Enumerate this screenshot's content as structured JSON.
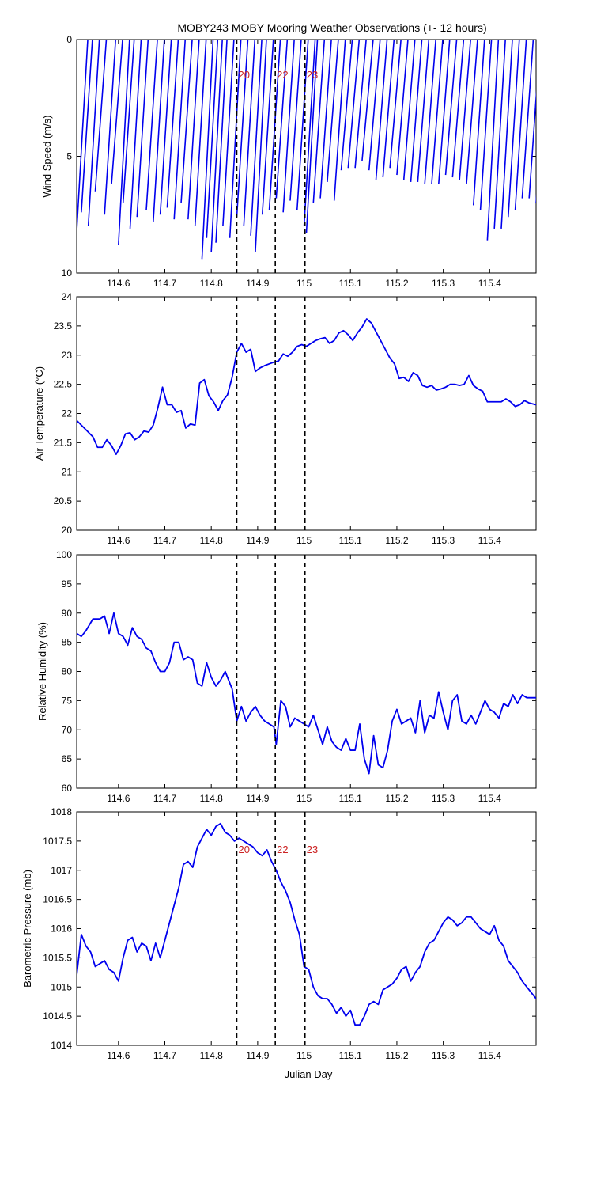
{
  "title": "MOBY243 MOBY Mooring Weather Observations (+- 12 hours)",
  "colors": {
    "line": "#0000ee",
    "axis": "#000000",
    "marker_label": "#cc2222",
    "marker_line": "#000000"
  },
  "markers": [
    {
      "x": 114.855,
      "label": "20"
    },
    {
      "x": 114.938,
      "label": "22"
    },
    {
      "x": 115.002,
      "label": "23"
    }
  ],
  "chart_data": [
    {
      "type": "line",
      "ylabel": "Wind Speed (m/s)",
      "xlabel": "",
      "xlim": [
        114.51,
        115.5
      ],
      "ylim": [
        10,
        0
      ],
      "y_reversed": true,
      "xticks": [
        114.6,
        114.7,
        114.8,
        114.9,
        115,
        115.1,
        115.2,
        115.3,
        115.4
      ],
      "xtick_labels": [
        "114.6",
        "114.7",
        "114.8",
        "114.9",
        "115",
        "115.1",
        "115.2",
        "115.3",
        "115.4"
      ],
      "yticks": [
        0,
        5,
        10
      ],
      "ytick_labels": [
        "0",
        "5",
        "10"
      ],
      "show_markers_labels": true,
      "style": "sticks",
      "series": [
        {
          "x": [
            114.51,
            114.52,
            114.535,
            114.55,
            114.57,
            114.585,
            114.6,
            114.61,
            114.625,
            114.64,
            114.66,
            114.675,
            114.69,
            114.705,
            114.72,
            114.735,
            114.75,
            114.765,
            114.78,
            114.79,
            114.8,
            114.81,
            114.825,
            114.84,
            114.855,
            114.87,
            114.885,
            114.895,
            114.91,
            114.925,
            114.94,
            114.955,
            114.97,
            114.985,
            115.0,
            115.005,
            115.02,
            115.035,
            115.05,
            115.065,
            115.08,
            115.095,
            115.11,
            115.125,
            115.14,
            115.155,
            115.17,
            115.185,
            115.2,
            115.215,
            115.23,
            115.245,
            115.26,
            115.275,
            115.29,
            115.305,
            115.32,
            115.335,
            115.35,
            115.365,
            115.38,
            115.395,
            115.41,
            115.425,
            115.44,
            115.455,
            115.47,
            115.485,
            115.5
          ],
          "values": [
            8.2,
            7.4,
            8.0,
            6.5,
            7.5,
            6.2,
            8.8,
            7.0,
            8.1,
            7.6,
            7.3,
            7.8,
            7.5,
            7.2,
            7.7,
            7.0,
            7.7,
            8.0,
            9.4,
            8.5,
            9.1,
            8.7,
            8.0,
            8.5,
            7.6,
            8.0,
            8.4,
            9.1,
            7.5,
            7.3,
            6.8,
            7.4,
            6.9,
            7.3,
            8.0,
            8.3,
            7.0,
            6.8,
            6.1,
            6.9,
            5.6,
            5.5,
            5.5,
            5.2,
            5.6,
            6.0,
            5.9,
            5.5,
            5.8,
            6.0,
            6.1,
            6.1,
            6.2,
            6.2,
            6.2,
            5.8,
            5.9,
            6.0,
            6.2,
            7.1,
            7.3,
            8.6,
            8.1,
            8.1,
            7.6,
            7.3,
            6.8,
            6.8,
            7.0
          ]
        }
      ]
    },
    {
      "type": "line",
      "ylabel": "Air Temperature (°C)",
      "xlabel": "",
      "xlim": [
        114.51,
        115.5
      ],
      "ylim": [
        20,
        24
      ],
      "xticks": [
        114.6,
        114.7,
        114.8,
        114.9,
        115,
        115.1,
        115.2,
        115.3,
        115.4
      ],
      "xtick_labels": [
        "114.6",
        "114.7",
        "114.8",
        "114.9",
        "115",
        "115.1",
        "115.2",
        "115.3",
        "115.4"
      ],
      "yticks": [
        20,
        20.5,
        21,
        21.5,
        22,
        22.5,
        23,
        23.5,
        24
      ],
      "ytick_labels": [
        "20",
        "20.5",
        "21",
        "21.5",
        "22",
        "22.5",
        "23",
        "23.5",
        "24"
      ],
      "show_markers_labels": false,
      "series": [
        {
          "x": [
            114.51,
            114.53,
            114.545,
            114.555,
            114.565,
            114.575,
            114.585,
            114.595,
            114.605,
            114.615,
            114.625,
            114.635,
            114.645,
            114.655,
            114.665,
            114.675,
            114.685,
            114.695,
            114.705,
            114.715,
            114.725,
            114.735,
            114.745,
            114.755,
            114.765,
            114.775,
            114.785,
            114.795,
            114.805,
            114.815,
            114.825,
            114.835,
            114.845,
            114.855,
            114.865,
            114.875,
            114.885,
            114.895,
            114.905,
            114.915,
            114.925,
            114.935,
            114.945,
            114.955,
            114.965,
            114.975,
            114.985,
            114.995,
            115.005,
            115.015,
            115.025,
            115.035,
            115.045,
            115.055,
            115.065,
            115.075,
            115.085,
            115.095,
            115.105,
            115.115,
            115.125,
            115.135,
            115.145,
            115.155,
            115.165,
            115.175,
            115.185,
            115.195,
            115.205,
            115.215,
            115.225,
            115.235,
            115.245,
            115.255,
            115.265,
            115.275,
            115.285,
            115.295,
            115.305,
            115.315,
            115.325,
            115.335,
            115.345,
            115.355,
            115.365,
            115.375,
            115.385,
            115.395,
            115.405,
            115.415,
            115.425,
            115.435,
            115.445,
            115.455,
            115.465,
            115.475,
            115.485,
            115.5
          ],
          "values": [
            21.88,
            21.72,
            21.6,
            21.42,
            21.42,
            21.55,
            21.45,
            21.3,
            21.45,
            21.65,
            21.67,
            21.55,
            21.6,
            21.7,
            21.68,
            21.8,
            22.1,
            22.45,
            22.15,
            22.15,
            22.02,
            22.05,
            21.75,
            21.82,
            21.8,
            22.52,
            22.58,
            22.3,
            22.2,
            22.05,
            22.22,
            22.32,
            22.62,
            23.05,
            23.2,
            23.05,
            23.1,
            22.72,
            22.78,
            22.82,
            22.85,
            22.88,
            22.9,
            23.02,
            22.98,
            23.05,
            23.15,
            23.18,
            23.15,
            23.2,
            23.25,
            23.28,
            23.3,
            23.2,
            23.25,
            23.38,
            23.42,
            23.35,
            23.25,
            23.38,
            23.48,
            23.62,
            23.55,
            23.4,
            23.25,
            23.1,
            22.95,
            22.85,
            22.6,
            22.62,
            22.55,
            22.7,
            22.65,
            22.48,
            22.45,
            22.48,
            22.4,
            22.42,
            22.45,
            22.5,
            22.5,
            22.48,
            22.5,
            22.65,
            22.48,
            22.42,
            22.38,
            22.2,
            22.2,
            22.2,
            22.2,
            22.25,
            22.2,
            22.12,
            22.15,
            22.22,
            22.18,
            22.15
          ]
        }
      ]
    },
    {
      "type": "line",
      "ylabel": "Relative Humidity (%)",
      "xlabel": "",
      "xlim": [
        114.51,
        115.5
      ],
      "ylim": [
        60,
        100
      ],
      "xticks": [
        114.6,
        114.7,
        114.8,
        114.9,
        115,
        115.1,
        115.2,
        115.3,
        115.4
      ],
      "xtick_labels": [
        "114.6",
        "114.7",
        "114.8",
        "114.9",
        "115",
        "115.1",
        "115.2",
        "115.3",
        "115.4"
      ],
      "yticks": [
        60,
        65,
        70,
        75,
        80,
        85,
        90,
        95,
        100
      ],
      "ytick_labels": [
        "60",
        "65",
        "70",
        "75",
        "80",
        "85",
        "90",
        "95",
        "100"
      ],
      "show_markers_labels": false,
      "series": [
        {
          "x": [
            114.51,
            114.52,
            114.53,
            114.545,
            114.56,
            114.57,
            114.58,
            114.59,
            114.6,
            114.61,
            114.62,
            114.63,
            114.64,
            114.65,
            114.66,
            114.67,
            114.68,
            114.69,
            114.7,
            114.71,
            114.72,
            114.73,
            114.74,
            114.75,
            114.76,
            114.77,
            114.78,
            114.79,
            114.8,
            114.81,
            114.82,
            114.83,
            114.845,
            114.855,
            114.865,
            114.875,
            114.885,
            114.895,
            114.905,
            114.915,
            114.925,
            114.935,
            114.94,
            114.95,
            114.96,
            114.97,
            114.98,
            114.99,
            115.0,
            115.01,
            115.02,
            115.03,
            115.04,
            115.05,
            115.06,
            115.07,
            115.08,
            115.09,
            115.1,
            115.11,
            115.12,
            115.13,
            115.14,
            115.15,
            115.16,
            115.17,
            115.18,
            115.19,
            115.2,
            115.21,
            115.22,
            115.23,
            115.24,
            115.25,
            115.26,
            115.27,
            115.28,
            115.29,
            115.3,
            115.31,
            115.32,
            115.33,
            115.34,
            115.35,
            115.36,
            115.37,
            115.38,
            115.39,
            115.4,
            115.41,
            115.42,
            115.43,
            115.44,
            115.45,
            115.46,
            115.47,
            115.48,
            115.49,
            115.5
          ],
          "values": [
            86.5,
            86,
            87,
            89,
            89,
            89.5,
            86.5,
            90,
            86.5,
            86,
            84.5,
            87.5,
            86,
            85.5,
            84,
            83.5,
            81.5,
            80,
            80,
            81.5,
            85,
            85,
            82,
            82.5,
            82,
            78,
            77.5,
            81.5,
            79,
            77.5,
            78.5,
            80,
            77,
            71.5,
            74,
            71.5,
            73,
            74,
            72.5,
            71.5,
            71,
            70.5,
            67.5,
            75,
            74,
            70.5,
            72,
            71.5,
            71,
            70.5,
            72.5,
            70,
            67.5,
            70.5,
            68,
            67,
            66.5,
            68.5,
            66.5,
            66.5,
            71,
            65,
            62.5,
            69,
            64,
            63.5,
            66.5,
            71.5,
            73.5,
            71,
            71.5,
            72,
            69.5,
            75,
            69.5,
            72.5,
            72,
            76.5,
            73,
            70,
            75,
            76,
            71.5,
            71,
            72.5,
            71,
            73,
            75,
            73.5,
            73,
            72,
            74.5,
            74,
            76,
            74.5,
            76,
            75.5,
            75.5,
            75.5
          ]
        }
      ]
    },
    {
      "type": "line",
      "ylabel": "Barometric Pressure (mb)",
      "xlabel": "Julian Day",
      "xlim": [
        114.51,
        115.5
      ],
      "ylim": [
        1014,
        1018
      ],
      "xticks": [
        114.6,
        114.7,
        114.8,
        114.9,
        115,
        115.1,
        115.2,
        115.3,
        115.4
      ],
      "xtick_labels": [
        "114.6",
        "114.7",
        "114.8",
        "114.9",
        "115",
        "115.1",
        "115.2",
        "115.3",
        "115.4"
      ],
      "yticks": [
        1014,
        1014.5,
        1015,
        1015.5,
        1016,
        1016.5,
        1017,
        1017.5,
        1018
      ],
      "ytick_labels": [
        "1014",
        "1014.5",
        "1015",
        "1015.5",
        "1016",
        "1016.5",
        "1017",
        "1017.5",
        "1018"
      ],
      "show_markers_labels": true,
      "series": [
        {
          "x": [
            114.51,
            114.52,
            114.53,
            114.54,
            114.55,
            114.56,
            114.57,
            114.58,
            114.59,
            114.6,
            114.61,
            114.62,
            114.63,
            114.64,
            114.65,
            114.66,
            114.67,
            114.68,
            114.69,
            114.7,
            114.71,
            114.72,
            114.73,
            114.74,
            114.75,
            114.76,
            114.77,
            114.78,
            114.79,
            114.8,
            114.81,
            114.82,
            114.83,
            114.84,
            114.85,
            114.86,
            114.87,
            114.88,
            114.89,
            114.9,
            114.91,
            114.92,
            114.93,
            114.94,
            114.95,
            114.96,
            114.97,
            114.98,
            114.99,
            115.0,
            115.01,
            115.02,
            115.03,
            115.04,
            115.05,
            115.06,
            115.07,
            115.08,
            115.09,
            115.1,
            115.11,
            115.12,
            115.13,
            115.14,
            115.15,
            115.16,
            115.17,
            115.18,
            115.19,
            115.2,
            115.21,
            115.22,
            115.23,
            115.24,
            115.25,
            115.26,
            115.27,
            115.28,
            115.29,
            115.3,
            115.31,
            115.32,
            115.33,
            115.34,
            115.35,
            115.36,
            115.37,
            115.38,
            115.39,
            115.4,
            115.41,
            115.42,
            115.43,
            115.44,
            115.45,
            115.46,
            115.47,
            115.48,
            115.49,
            115.5
          ],
          "values": [
            1015.2,
            1015.9,
            1015.7,
            1015.6,
            1015.35,
            1015.4,
            1015.45,
            1015.3,
            1015.25,
            1015.1,
            1015.5,
            1015.8,
            1015.85,
            1015.6,
            1015.75,
            1015.7,
            1015.45,
            1015.75,
            1015.5,
            1015.8,
            1016.1,
            1016.4,
            1016.7,
            1017.1,
            1017.15,
            1017.05,
            1017.4,
            1017.55,
            1017.7,
            1017.6,
            1017.75,
            1017.8,
            1017.65,
            1017.6,
            1017.5,
            1017.55,
            1017.5,
            1017.45,
            1017.4,
            1017.3,
            1017.25,
            1017.35,
            1017.15,
            1017.0,
            1016.8,
            1016.65,
            1016.45,
            1016.15,
            1015.9,
            1015.35,
            1015.3,
            1015.0,
            1014.85,
            1014.8,
            1014.8,
            1014.7,
            1014.55,
            1014.65,
            1014.5,
            1014.6,
            1014.35,
            1014.35,
            1014.5,
            1014.7,
            1014.75,
            1014.7,
            1014.95,
            1015.0,
            1015.05,
            1015.15,
            1015.3,
            1015.35,
            1015.1,
            1015.25,
            1015.35,
            1015.6,
            1015.75,
            1015.8,
            1015.95,
            1016.1,
            1016.2,
            1016.15,
            1016.05,
            1016.1,
            1016.2,
            1016.2,
            1016.1,
            1016.0,
            1015.95,
            1015.9,
            1016.05,
            1015.8,
            1015.7,
            1015.45,
            1015.35,
            1015.25,
            1015.1,
            1015.0,
            1014.9,
            1014.8
          ]
        }
      ]
    }
  ]
}
